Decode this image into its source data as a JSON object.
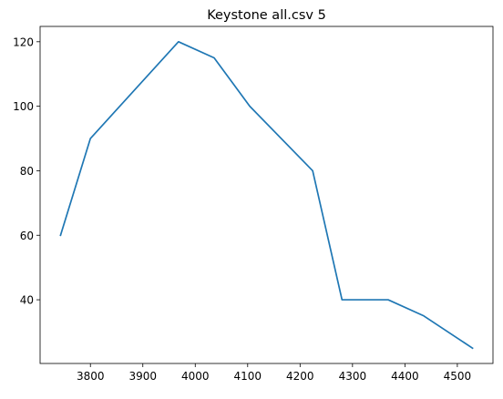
{
  "chart_data": {
    "type": "line",
    "title": "Keystone all.csv 5",
    "xlabel": "",
    "ylabel": "",
    "xlim": [
      3704,
      4568
    ],
    "ylim": [
      20.25,
      124.75
    ],
    "x_ticks": [
      3800,
      3900,
      4000,
      4100,
      4200,
      4300,
      4400,
      4500
    ],
    "y_ticks": [
      40,
      60,
      80,
      100,
      120
    ],
    "grid": false,
    "legend": "none",
    "series": [
      {
        "color": "#1f77b4",
        "x": [
          3743,
          3800,
          3968,
          4036,
          4104,
          4224,
          4280,
          4368,
          4436,
          4529
        ],
        "y": [
          60,
          90,
          120,
          115,
          100,
          80,
          40,
          40,
          35,
          25
        ]
      }
    ]
  }
}
